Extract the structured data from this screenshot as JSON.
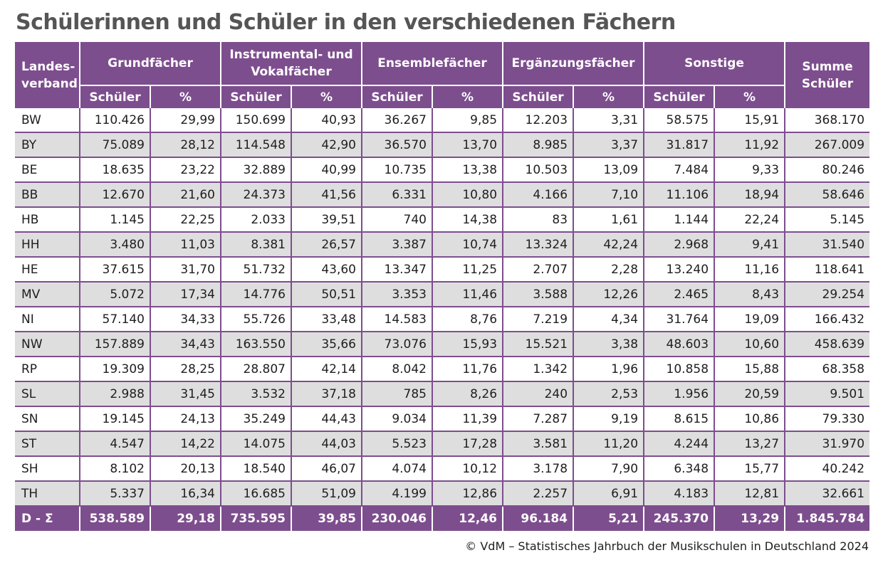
{
  "title": "Schülerinnen und Schüler in den verschiedenen Fächern",
  "source": "© VdM – Statistisches Jahrbuch der Musikschulen in Deutschland 2024",
  "colors": {
    "header_bg": "#7d4e8e",
    "stripe": "#dedede",
    "header_text": "#ffffff"
  },
  "chart_data": {
    "type": "table",
    "header": {
      "land": "Landes-\nverband",
      "groups": [
        "Grundfächer",
        "Instrumental- und\nVokalfächer",
        "Ensemblefächer",
        "Ergänzungsfächer",
        "Sonstige"
      ],
      "sum": "Summe\nSchüler",
      "sub": [
        "Schüler",
        "%"
      ]
    },
    "rows": [
      [
        "BW",
        "110.426",
        "29,99",
        "150.699",
        "40,93",
        "36.267",
        "9,85",
        "12.203",
        "3,31",
        "58.575",
        "15,91",
        "368.170"
      ],
      [
        "BY",
        "75.089",
        "28,12",
        "114.548",
        "42,90",
        "36.570",
        "13,70",
        "8.985",
        "3,37",
        "31.817",
        "11,92",
        "267.009"
      ],
      [
        "BE",
        "18.635",
        "23,22",
        "32.889",
        "40,99",
        "10.735",
        "13,38",
        "10.503",
        "13,09",
        "7.484",
        "9,33",
        "80.246"
      ],
      [
        "BB",
        "12.670",
        "21,60",
        "24.373",
        "41,56",
        "6.331",
        "10,80",
        "4.166",
        "7,10",
        "11.106",
        "18,94",
        "58.646"
      ],
      [
        "HB",
        "1.145",
        "22,25",
        "2.033",
        "39,51",
        "740",
        "14,38",
        "83",
        "1,61",
        "1.144",
        "22,24",
        "5.145"
      ],
      [
        "HH",
        "3.480",
        "11,03",
        "8.381",
        "26,57",
        "3.387",
        "10,74",
        "13.324",
        "42,24",
        "2.968",
        "9,41",
        "31.540"
      ],
      [
        "HE",
        "37.615",
        "31,70",
        "51.732",
        "43,60",
        "13.347",
        "11,25",
        "2.707",
        "2,28",
        "13.240",
        "11,16",
        "118.641"
      ],
      [
        "MV",
        "5.072",
        "17,34",
        "14.776",
        "50,51",
        "3.353",
        "11,46",
        "3.588",
        "12,26",
        "2.465",
        "8,43",
        "29.254"
      ],
      [
        "NI",
        "57.140",
        "34,33",
        "55.726",
        "33,48",
        "14.583",
        "8,76",
        "7.219",
        "4,34",
        "31.764",
        "19,09",
        "166.432"
      ],
      [
        "NW",
        "157.889",
        "34,43",
        "163.550",
        "35,66",
        "73.076",
        "15,93",
        "15.521",
        "3,38",
        "48.603",
        "10,60",
        "458.639"
      ],
      [
        "RP",
        "19.309",
        "28,25",
        "28.807",
        "42,14",
        "8.042",
        "11,76",
        "1.342",
        "1,96",
        "10.858",
        "15,88",
        "68.358"
      ],
      [
        "SL",
        "2.988",
        "31,45",
        "3.532",
        "37,18",
        "785",
        "8,26",
        "240",
        "2,53",
        "1.956",
        "20,59",
        "9.501"
      ],
      [
        "SN",
        "19.145",
        "24,13",
        "35.249",
        "44,43",
        "9.034",
        "11,39",
        "7.287",
        "9,19",
        "8.615",
        "10,86",
        "79.330"
      ],
      [
        "ST",
        "4.547",
        "14,22",
        "14.075",
        "44,03",
        "5.523",
        "17,28",
        "3.581",
        "11,20",
        "4.244",
        "13,27",
        "31.970"
      ],
      [
        "SH",
        "8.102",
        "20,13",
        "18.540",
        "46,07",
        "4.074",
        "10,12",
        "3.178",
        "7,90",
        "6.348",
        "15,77",
        "40.242"
      ],
      [
        "TH",
        "5.337",
        "16,34",
        "16.685",
        "51,09",
        "4.199",
        "12,86",
        "2.257",
        "6,91",
        "4.183",
        "12,81",
        "32.661"
      ]
    ],
    "total": [
      "D - Σ",
      "538.589",
      "29,18",
      "735.595",
      "39,85",
      "230.046",
      "12,46",
      "96.184",
      "5,21",
      "245.370",
      "13,29",
      "1.845.784"
    ]
  }
}
